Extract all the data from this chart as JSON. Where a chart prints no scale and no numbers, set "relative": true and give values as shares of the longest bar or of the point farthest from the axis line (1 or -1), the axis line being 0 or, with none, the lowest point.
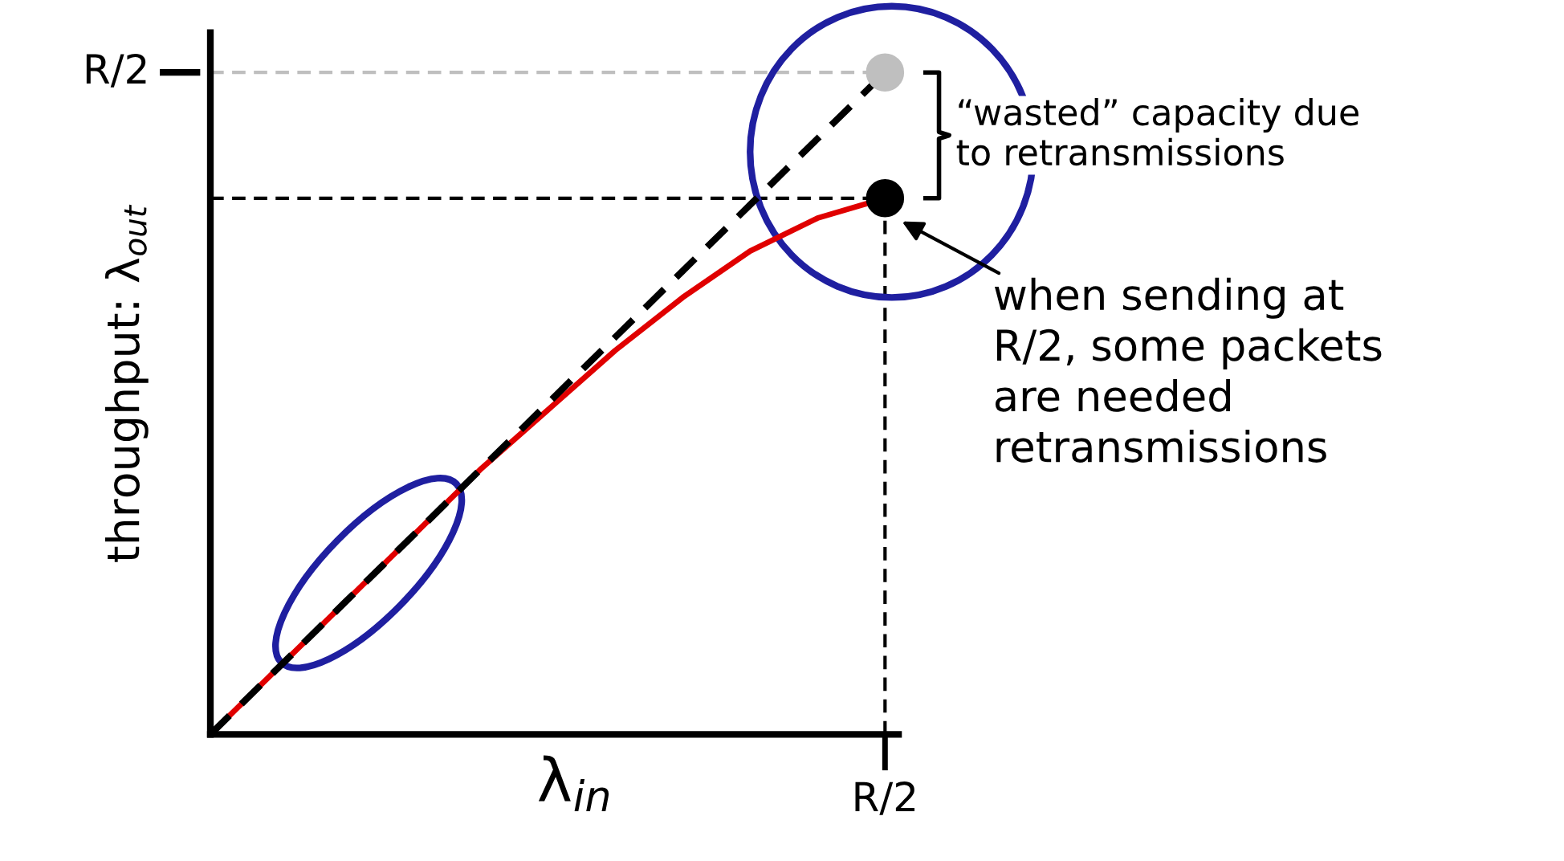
{
  "chart_data": {
    "type": "line",
    "relative": true,
    "xlabel": "λ$_{in}$",
    "ylabel": "throughput: λ$_{out}$",
    "categories": [
      null,
      null,
      null,
      null,
      null,
      null,
      null,
      null,
      null,
      null,
      null
    ],
    "series": [
      {
        "color": "#000000",
        "line_style": "dashed",
        "values": [
          0,
          0.1,
          0.2,
          0.3,
          0.4,
          0.5,
          0.6,
          0.7,
          0.8,
          0.9,
          1
        ]
      },
      {
        "color": "#e00000",
        "line_style": "solid",
        "values": [
          0,
          0.1,
          0.2,
          0.3,
          0.4,
          0.49,
          0.58,
          0.66,
          0.73,
          0.78,
          0.81
        ]
      }
    ],
    "annotations": [
      "R/2",
      "R/2",
      "“wasted” capacity due\nto retransmissions",
      "when sending at\nR/2, some packets\nare needed\nretransmissions"
    ],
    "ref_lines": [
      {
        "axis": "y",
        "value": 1,
        "color": "#bfbfbf",
        "line_style": "dashed"
      },
      {
        "axis": "y",
        "value": 0.81,
        "color": "#000000",
        "line_style": "dashed"
      }
    ],
    "grid": false,
    "legend": false
  }
}
